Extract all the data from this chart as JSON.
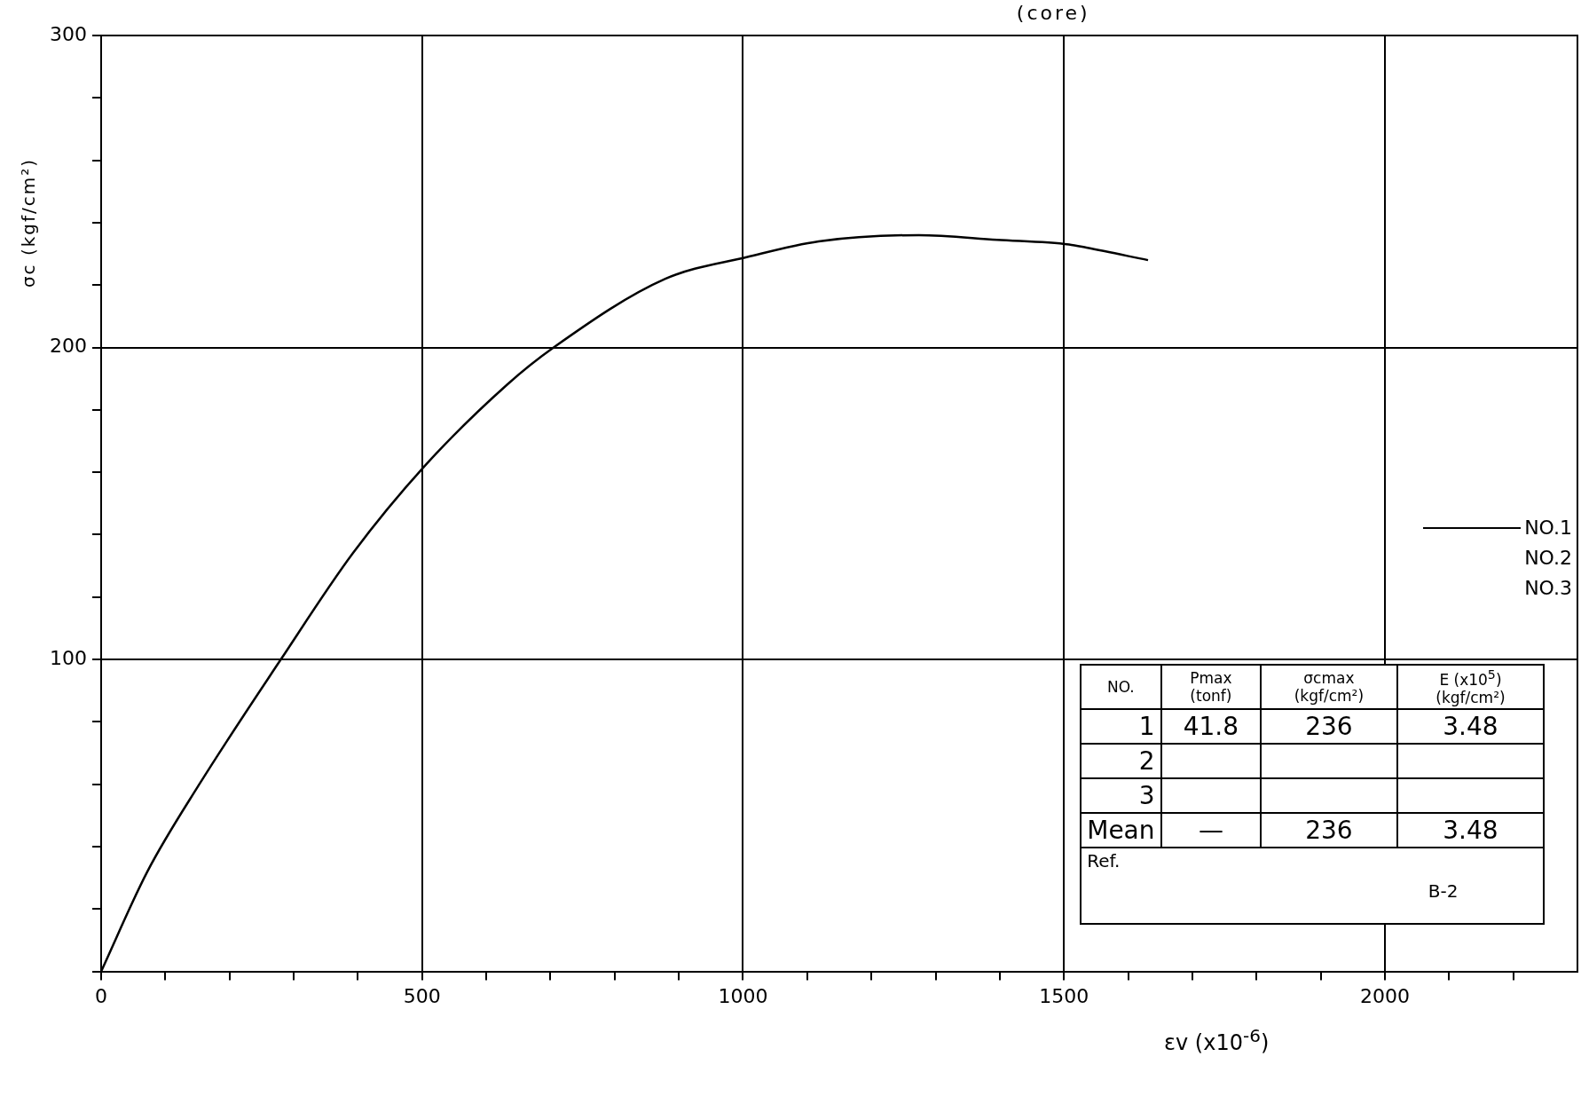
{
  "chart_data": {
    "type": "line",
    "title": "(core)",
    "xlabel": "εv (x10$^{-6}$)",
    "ylabel": "σc (kgf/cm²)",
    "xlim": [
      0,
      2300
    ],
    "xticks": [
      0,
      {
        "value": 100,
        "label": null
      },
      {
        "value": 200,
        "label": null
      },
      {
        "value": 300,
        "label": null
      },
      {
        "value": 400,
        "label": null
      },
      500,
      {
        "value": 600,
        "label": null
      },
      {
        "value": 700,
        "label": null
      },
      {
        "value": 800,
        "label": null
      },
      {
        "value": 900,
        "label": null
      },
      1000,
      {
        "value": 1100,
        "label": null
      },
      {
        "value": 1200,
        "label": null
      },
      {
        "value": 1300,
        "label": null
      },
      {
        "value": 1400,
        "label": null
      },
      1500,
      {
        "value": 1600,
        "label": null
      },
      {
        "value": 1700,
        "label": null
      },
      {
        "value": 1800,
        "label": null
      },
      {
        "value": 1900,
        "label": null
      },
      2000,
      {
        "value": 2100,
        "label": null
      },
      {
        "value": 2200,
        "label": null
      }
    ],
    "ylim": [
      0,
      300
    ],
    "yticks": [
      {
        "value": 0,
        "label": null
      },
      {
        "value": 20,
        "label": null
      },
      {
        "value": 40,
        "label": null
      },
      {
        "value": 60,
        "label": null
      },
      {
        "value": 80,
        "label": null
      },
      100,
      {
        "value": 120,
        "label": null
      },
      {
        "value": 140,
        "label": null
      },
      {
        "value": 160,
        "label": null
      },
      {
        "value": 180,
        "label": null
      },
      200,
      {
        "value": 220,
        "label": null
      },
      {
        "value": 240,
        "label": null
      },
      {
        "value": 260,
        "label": null
      },
      {
        "value": 280,
        "label": null
      },
      300
    ],
    "grid": true,
    "legend": "right",
    "marker": "none",
    "line_style": "solid",
    "series": [
      {
        "name": "NO.1",
        "color": "#000000",
        "x": [
          0,
          72,
          153,
          280,
          392,
          504,
          632,
          705,
          879,
          1007,
          1118,
          1274,
          1396,
          1508,
          1535,
          1631
        ],
        "values": [
          0,
          32,
          60,
          100,
          134,
          162,
          188,
          200,
          222,
          229,
          234,
          236,
          234.5,
          233,
          232,
          228
        ]
      },
      {
        "name": "NO.2"
      },
      {
        "name": "NO.3"
      }
    ],
    "annotations": [
      "NO.",
      "Pmax (tonf)",
      "σcmax (kgf/cm²)",
      "E (x10$^{5}$) (kgf/cm²)",
      "1",
      "41.8",
      "236",
      "3.48",
      "2",
      "3",
      "Mean",
      "—",
      "236",
      "3.48",
      "Ref.",
      "B-2"
    ]
  }
}
